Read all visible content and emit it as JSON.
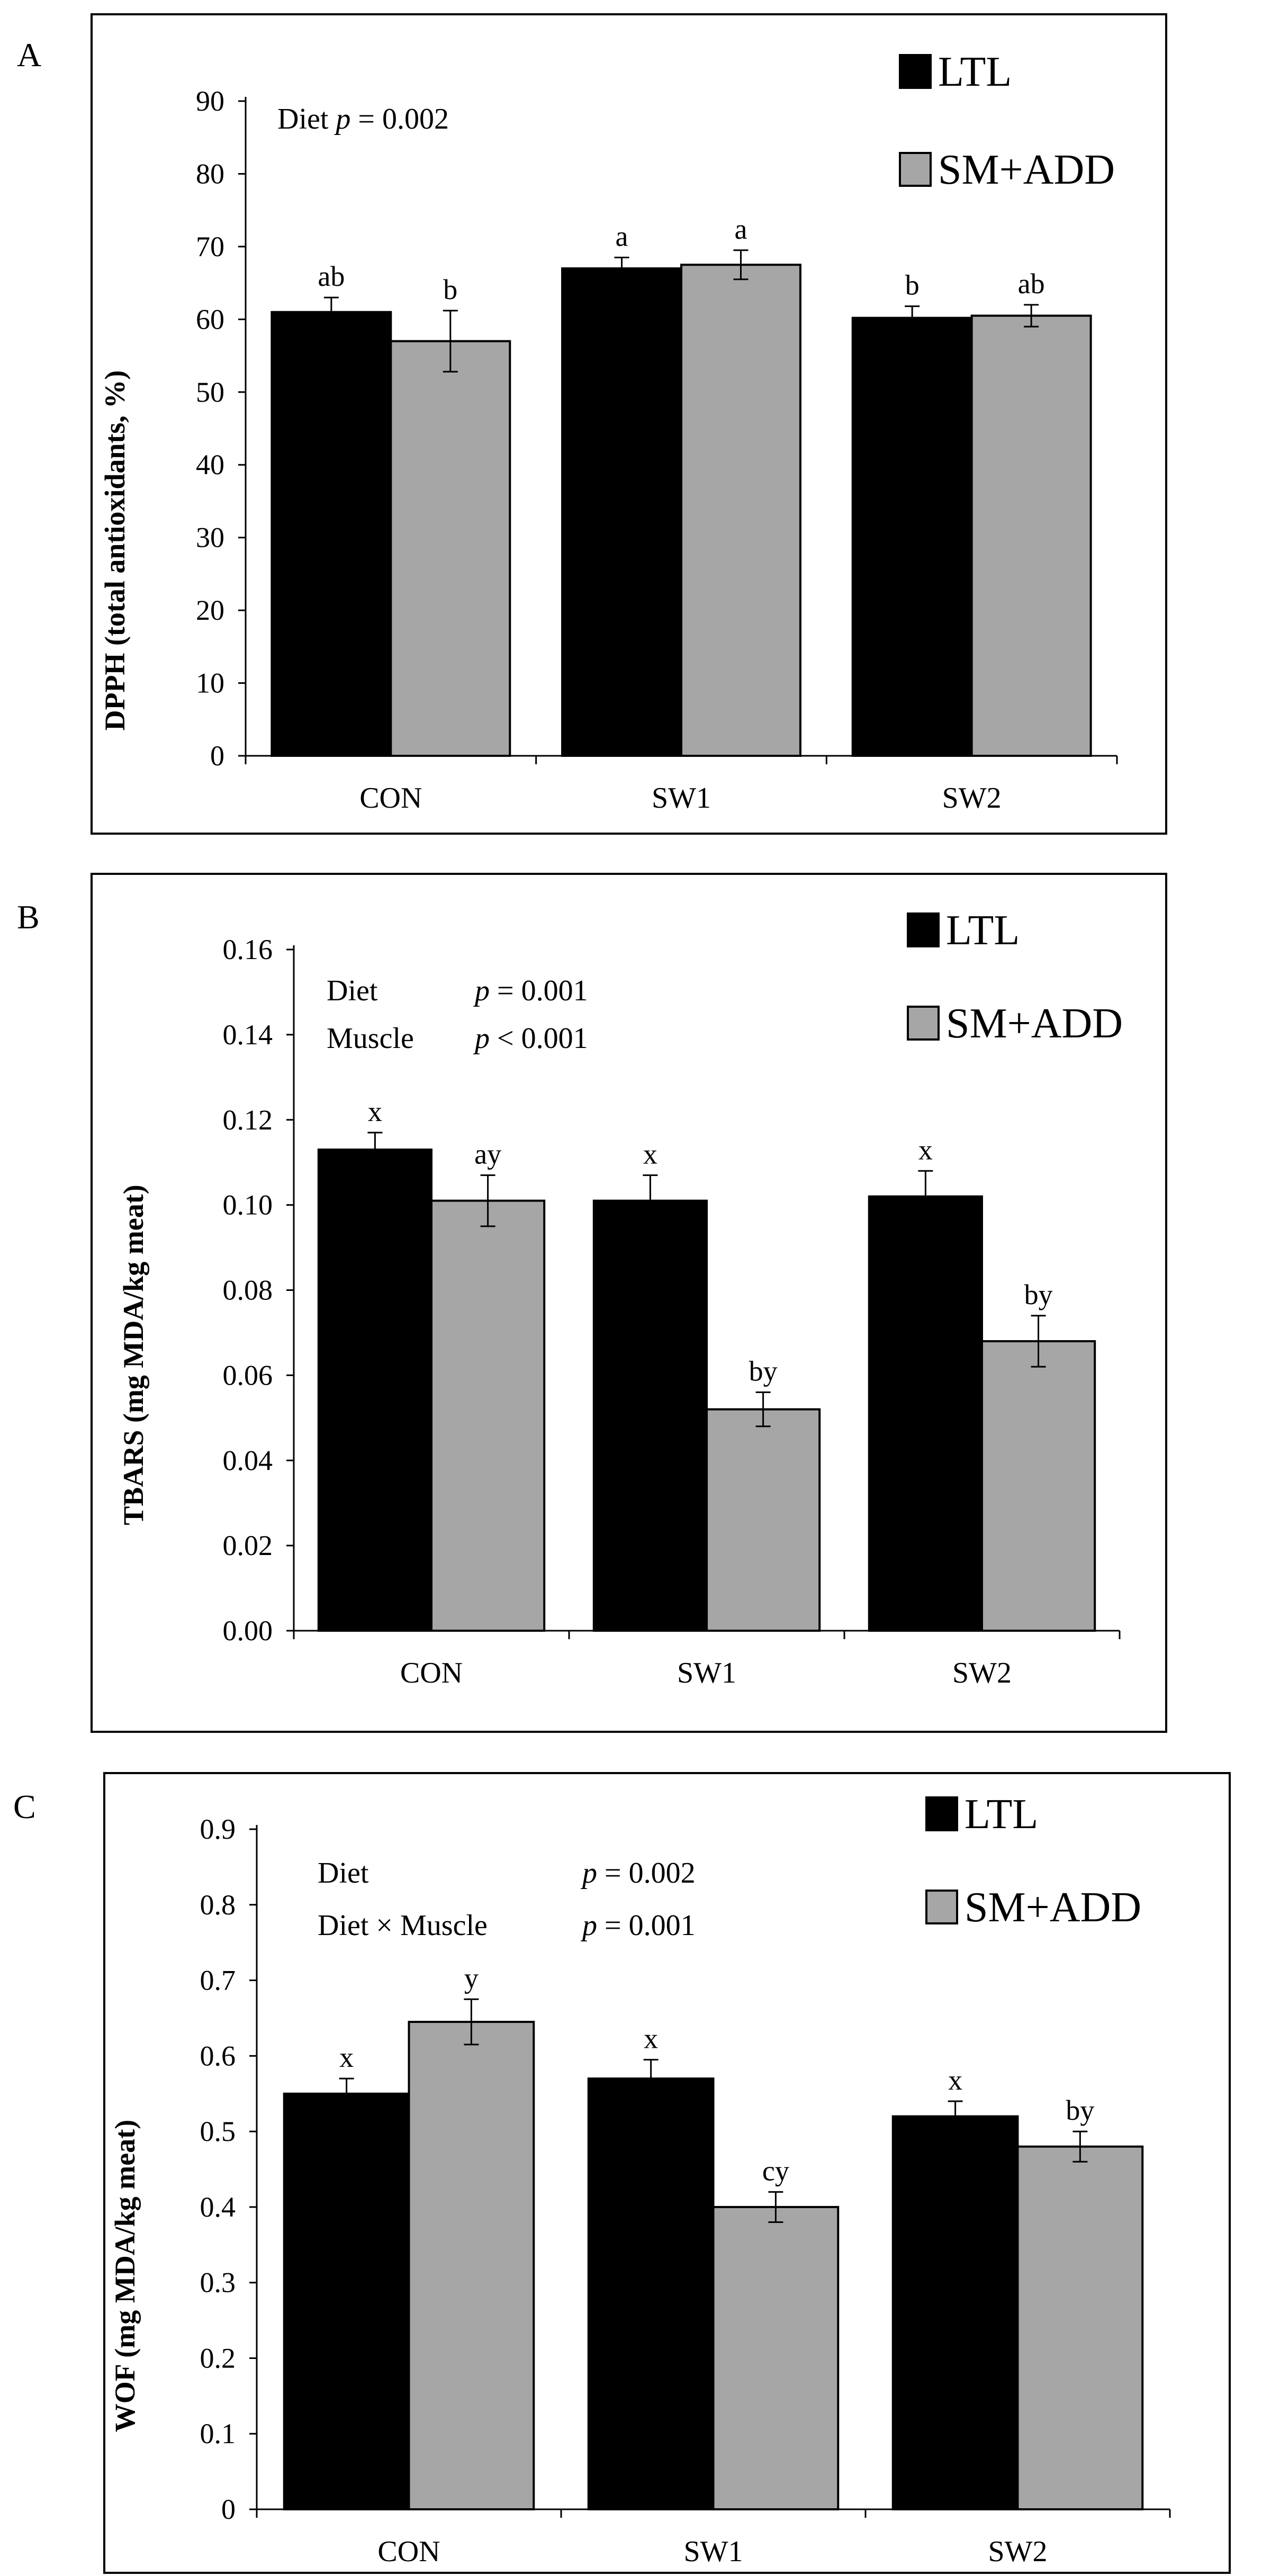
{
  "chart_data": [
    {
      "type": "bar",
      "panel": "A",
      "categories": [
        "CON",
        "SW1",
        "SW2"
      ],
      "ylabel": "DPPH (total antioxidants, %)",
      "xlabel": "",
      "ylim": [
        0,
        90
      ],
      "yticks": [
        "0",
        "10",
        "20",
        "30",
        "40",
        "50",
        "60",
        "70",
        "80",
        "90"
      ],
      "annotations": [
        {
          "label": "Diet",
          "p_text": "p",
          "rest": " = 0.002"
        }
      ],
      "series": [
        {
          "name": "LTL",
          "color": "#000000",
          "values": [
            61.0,
            67.0,
            60.2
          ],
          "errors": [
            2.0,
            1.5,
            1.6
          ],
          "letters": [
            "ab",
            "a",
            "b"
          ]
        },
        {
          "name": "SM+ADD",
          "color": "#a6a6a6",
          "values": [
            57.0,
            67.5,
            60.5
          ],
          "errors": [
            4.2,
            2.0,
            1.5
          ],
          "letters": [
            "b",
            "a",
            "ab"
          ]
        }
      ]
    },
    {
      "type": "bar",
      "panel": "B",
      "categories": [
        "CON",
        "SW1",
        "SW2"
      ],
      "ylabel": "TBARS (mg MDA/kg meat)",
      "xlabel": "",
      "ylim": [
        0,
        0.16
      ],
      "yticks": [
        "0.00",
        "0.02",
        "0.04",
        "0.06",
        "0.08",
        "0.10",
        "0.12",
        "0.14",
        "0.16"
      ],
      "annotations": [
        {
          "label": "Diet",
          "p_text": "p",
          "rest": " = 0.001"
        },
        {
          "label": "Muscle",
          "p_text": "p",
          "rest": " < 0.001"
        }
      ],
      "series": [
        {
          "name": "LTL",
          "color": "#000000",
          "values": [
            0.113,
            0.101,
            0.102
          ],
          "errors": [
            0.004,
            0.006,
            0.006
          ],
          "letters": [
            "x",
            "x",
            "x"
          ]
        },
        {
          "name": "SM+ADD",
          "color": "#a6a6a6",
          "values": [
            0.101,
            0.052,
            0.068
          ],
          "errors": [
            0.006,
            0.004,
            0.006
          ],
          "letters": [
            "ay",
            "by",
            "by"
          ]
        }
      ]
    },
    {
      "type": "bar",
      "panel": "C",
      "categories": [
        "CON",
        "SW1",
        "SW2"
      ],
      "ylabel": "WOF (mg MDA/kg meat)",
      "xlabel": "",
      "ylim": [
        0,
        0.9
      ],
      "yticks": [
        "0",
        "0.1",
        "0.2",
        "0.3",
        "0.4",
        "0.5",
        "0.6",
        "0.7",
        "0.8",
        "0.9"
      ],
      "annotations": [
        {
          "label": "Diet",
          "p_text": "p",
          "rest": " = 0.002"
        },
        {
          "label": "Diet × Muscle",
          "p_text": "p",
          "rest": " = 0.001"
        }
      ],
      "series": [
        {
          "name": "LTL",
          "color": "#000000",
          "values": [
            0.55,
            0.57,
            0.52
          ],
          "errors": [
            0.02,
            0.025,
            0.02
          ],
          "letters": [
            "x",
            "x",
            "x"
          ]
        },
        {
          "name": "SM+ADD",
          "color": "#a6a6a6",
          "values": [
            0.645,
            0.4,
            0.48
          ],
          "errors": [
            0.03,
            0.02,
            0.02
          ],
          "letters": [
            "y",
            "cy",
            "by"
          ]
        }
      ]
    }
  ]
}
